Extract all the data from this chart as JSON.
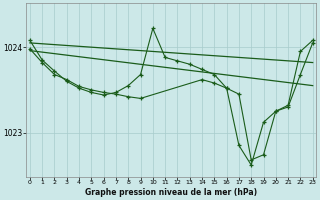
{
  "background_color": "#cce8e8",
  "line_color": "#1a5c1a",
  "grid_color": "#a8cccc",
  "title": "Graphe pression niveau de la mer (hPa)",
  "xlim_min": -0.3,
  "xlim_max": 23.3,
  "ylim_min": 1022.48,
  "ylim_max": 1024.52,
  "yticks": [
    1023,
    1024
  ],
  "xticks": [
    0,
    1,
    2,
    3,
    4,
    5,
    6,
    7,
    8,
    9,
    10,
    11,
    12,
    13,
    14,
    15,
    16,
    17,
    18,
    19,
    20,
    21,
    22,
    23
  ],
  "trend1_x": [
    0,
    23
  ],
  "trend1_y": [
    1024.05,
    1023.82
  ],
  "trend2_x": [
    0,
    23
  ],
  "trend2_y": [
    1023.96,
    1023.55
  ],
  "main_x": [
    0,
    1,
    2,
    3,
    4,
    5,
    6,
    7,
    8,
    9,
    10,
    11,
    12,
    13,
    14,
    15,
    16,
    17,
    18,
    19,
    20,
    21,
    22,
    23
  ],
  "main_y": [
    1024.08,
    1023.85,
    1023.72,
    1023.6,
    1023.52,
    1023.47,
    1023.44,
    1023.47,
    1023.55,
    1023.68,
    1024.22,
    1023.88,
    1023.84,
    1023.8,
    1023.74,
    1023.68,
    1023.52,
    1022.85,
    1022.62,
    1023.12,
    1023.25,
    1023.32,
    1023.95,
    1024.08
  ],
  "sec_x": [
    0,
    1,
    2,
    3,
    4,
    5,
    6,
    7,
    8,
    9,
    14,
    15,
    16,
    17,
    18,
    19,
    20,
    21,
    22,
    23
  ],
  "sec_y": [
    1023.98,
    1023.82,
    1023.68,
    1023.62,
    1023.54,
    1023.5,
    1023.47,
    1023.45,
    1023.42,
    1023.4,
    1023.62,
    1023.58,
    1023.52,
    1023.45,
    1022.68,
    1022.74,
    1023.25,
    1023.3,
    1023.68,
    1024.05
  ]
}
